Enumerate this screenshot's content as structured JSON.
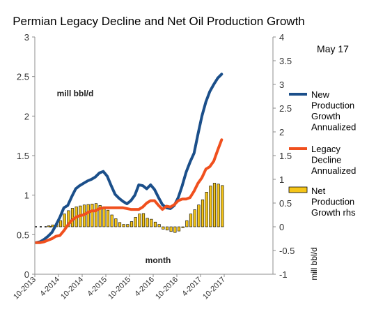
{
  "chart_data": {
    "type": "line",
    "title": "Permian Legacy Decline and Net Oil Production Growth",
    "annotation": "May 17",
    "left_axis": {
      "label": "mill bbl/d",
      "ylim": [
        0,
        3
      ],
      "ticks": [
        "0",
        "0.5",
        "1",
        "1.5",
        "2",
        "2.5",
        "3"
      ]
    },
    "right_axis": {
      "label": "mill bbl/d",
      "ylim": [
        -1,
        4
      ],
      "ticks": [
        "-1",
        "-0.5",
        "0",
        "0.5",
        "1",
        "1.5",
        "2",
        "2.5",
        "3",
        "3.5",
        "4"
      ]
    },
    "xlabel": "month",
    "x_tick_labels": [
      "10-2013",
      "4-2014",
      "10-2014",
      "4-2015",
      "10-2015",
      "4-2016",
      "10-2016",
      "4-2017",
      "10-2017"
    ],
    "grid": false,
    "legend_position": "right",
    "series": [
      {
        "name": "New Production Growth Annualized",
        "axis": "left",
        "color": "#1b4f8a",
        "style": "line",
        "values": [
          0.4,
          0.41,
          0.44,
          0.48,
          0.53,
          0.62,
          0.72,
          0.84,
          0.87,
          0.98,
          1.08,
          1.12,
          1.15,
          1.18,
          1.2,
          1.23,
          1.28,
          1.3,
          1.24,
          1.12,
          1.01,
          0.96,
          0.92,
          0.89,
          0.93,
          1.0,
          1.13,
          1.12,
          1.08,
          1.13,
          1.07,
          0.97,
          0.88,
          0.84,
          0.83,
          0.87,
          0.97,
          1.12,
          1.29,
          1.42,
          1.53,
          1.77,
          2.0,
          2.18,
          2.31,
          2.4,
          2.48,
          2.53
        ]
      },
      {
        "name": "Legacy Decline Annualized",
        "axis": "left",
        "color": "#f0501e",
        "style": "line",
        "values": [
          0.4,
          0.4,
          0.41,
          0.43,
          0.45,
          0.48,
          0.49,
          0.55,
          0.62,
          0.68,
          0.72,
          0.74,
          0.75,
          0.78,
          0.8,
          0.8,
          0.83,
          0.84,
          0.84,
          0.84,
          0.84,
          0.84,
          0.84,
          0.83,
          0.82,
          0.82,
          0.82,
          0.85,
          0.9,
          0.93,
          0.93,
          0.87,
          0.82,
          0.86,
          0.85,
          0.88,
          0.93,
          0.95,
          0.95,
          0.97,
          1.05,
          1.15,
          1.22,
          1.33,
          1.36,
          1.43,
          1.57,
          1.7
        ]
      },
      {
        "name": "Net Production Growth rhs",
        "axis": "right",
        "color": "#f5c518",
        "style": "bar",
        "values": [
          0.0,
          0.0,
          0.0,
          0.02,
          0.04,
          0.07,
          0.13,
          0.27,
          0.34,
          0.39,
          0.42,
          0.44,
          0.46,
          0.47,
          0.48,
          0.49,
          0.45,
          0.41,
          0.35,
          0.25,
          0.17,
          0.09,
          0.05,
          0.05,
          0.11,
          0.2,
          0.27,
          0.28,
          0.18,
          0.16,
          0.1,
          0.05,
          -0.05,
          -0.07,
          -0.1,
          -0.12,
          -0.09,
          -0.02,
          0.13,
          0.27,
          0.36,
          0.46,
          0.57,
          0.73,
          0.86,
          0.92,
          0.9,
          0.87
        ]
      }
    ]
  }
}
